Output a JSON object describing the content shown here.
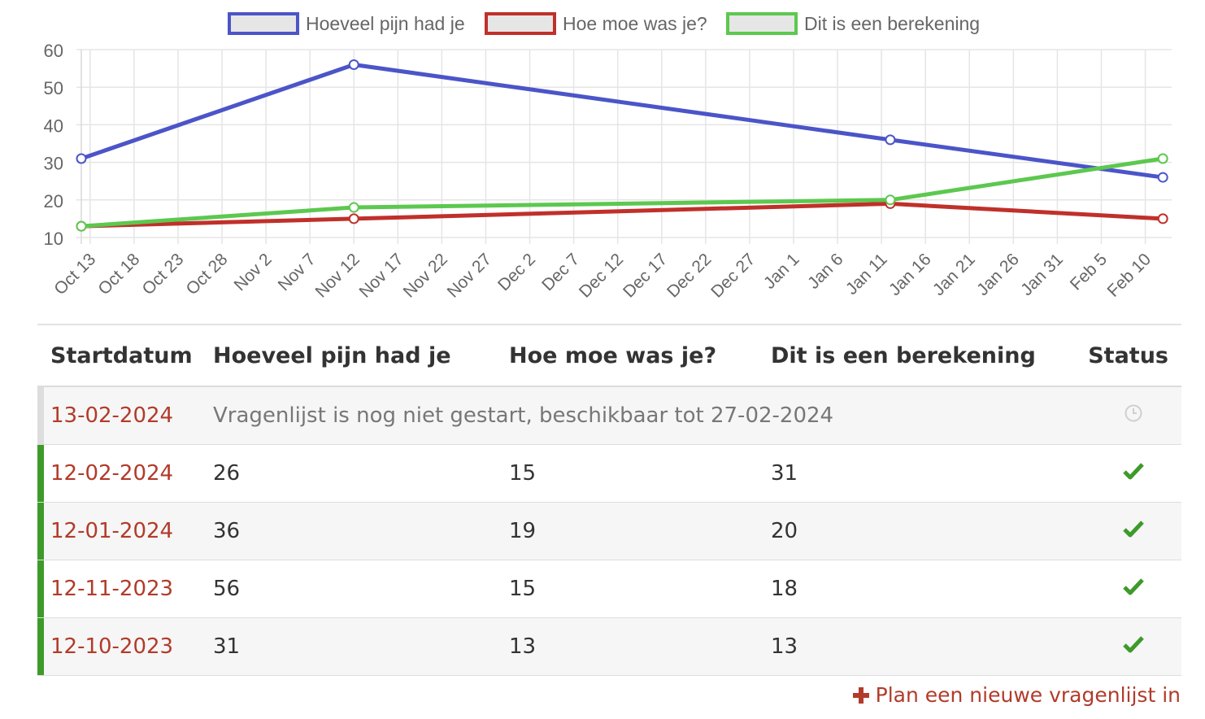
{
  "chart_data": {
    "type": "line",
    "legend_position": "top",
    "grid": true,
    "ylim": [
      10,
      60
    ],
    "y_ticks": [
      60,
      50,
      40,
      30,
      20,
      10
    ],
    "x_ticks": [
      "Oct 13",
      "Oct 18",
      "Oct 23",
      "Oct 28",
      "Nov 2",
      "Nov 7",
      "Nov 12",
      "Nov 17",
      "Nov 22",
      "Nov 27",
      "Dec 2",
      "Dec 7",
      "Dec 12",
      "Dec 17",
      "Dec 22",
      "Dec 27",
      "Jan 1",
      "Jan 6",
      "Jan 11",
      "Jan 16",
      "Jan 21",
      "Jan 26",
      "Jan 31",
      "Feb 5",
      "Feb 10"
    ],
    "x": [
      "2023-10-12",
      "2023-11-12",
      "2024-01-12",
      "2024-02-12"
    ],
    "series": [
      {
        "name": "Hoeveel pijn had je",
        "color": "#4b55c8",
        "values": [
          31,
          56,
          36,
          26
        ]
      },
      {
        "name": "Hoe moe was je?",
        "color": "#c0302a",
        "values": [
          13,
          15,
          19,
          15
        ]
      },
      {
        "name": "Dit is een berekening",
        "color": "#5cc84f",
        "values": [
          13,
          18,
          20,
          31
        ]
      }
    ]
  },
  "table": {
    "headers": [
      "Startdatum",
      "Hoeveel pijn had je",
      "Hoe moe was je?",
      "Dit is een berekening",
      "Status"
    ],
    "pending_row": {
      "date": "13-02-2024",
      "message": "Vragenlijst is nog niet gestart, beschikbaar tot 27-02-2024",
      "status_icon": "clock-icon",
      "bar_color": "#dddddd"
    },
    "rows": [
      {
        "date": "12-02-2024",
        "pijn": "26",
        "moe": "15",
        "berekening": "31",
        "status_icon": "check-icon"
      },
      {
        "date": "12-01-2024",
        "pijn": "36",
        "moe": "19",
        "berekening": "20",
        "status_icon": "check-icon"
      },
      {
        "date": "12-11-2023",
        "pijn": "56",
        "moe": "15",
        "berekening": "18",
        "status_icon": "check-icon"
      },
      {
        "date": "12-10-2023",
        "pijn": "31",
        "moe": "13",
        "berekening": "13",
        "status_icon": "check-icon"
      }
    ],
    "completed_bar_color": "#3e9a2a",
    "check_color": "#3e9a2a"
  },
  "actions": {
    "add_label": "Plan een nieuwe vragenlijst in"
  }
}
